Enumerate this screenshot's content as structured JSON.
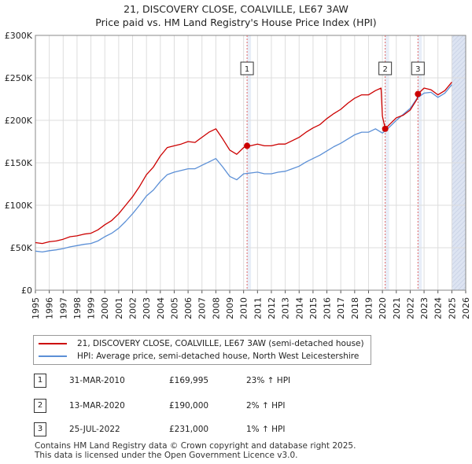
{
  "header": {
    "title": "21, DISCOVERY CLOSE, COALVILLE, LE67 3AW",
    "subtitle": "Price paid vs. HM Land Registry's House Price Index (HPI)"
  },
  "colors": {
    "property": "#cc0000",
    "hpi": "#5b8fd6",
    "future_shade": "#dde4f2",
    "sale_shade": "#e8eef8",
    "grid": "#dddddd",
    "marker_line": "#e06666"
  },
  "chart_data": {
    "type": "line",
    "title": "21, DISCOVERY CLOSE, COALVILLE, LE67 3AW",
    "xlim": [
      1995,
      2026
    ],
    "ylim": [
      0,
      300000
    ],
    "x_ticks": [
      1995,
      1996,
      1997,
      1998,
      1999,
      2000,
      2001,
      2002,
      2003,
      2004,
      2005,
      2006,
      2007,
      2008,
      2009,
      2010,
      2011,
      2012,
      2013,
      2014,
      2015,
      2016,
      2017,
      2018,
      2019,
      2020,
      2021,
      2022,
      2023,
      2024,
      2025,
      2026
    ],
    "y_ticks": [
      0,
      50000,
      100000,
      150000,
      200000,
      250000,
      300000
    ],
    "y_tick_labels": [
      "£0",
      "£50K",
      "£100K",
      "£150K",
      "£200K",
      "£250K",
      "£300K"
    ],
    "data_end": 2025.0,
    "series": [
      {
        "name": "21, DISCOVERY CLOSE, COALVILLE, LE67 3AW (semi-detached house)",
        "x": [
          1995.0,
          1995.5,
          1996.0,
          1996.5,
          1997.0,
          1997.5,
          1998.0,
          1998.5,
          1999.0,
          1999.5,
          2000.0,
          2000.5,
          2001.0,
          2001.5,
          2002.0,
          2002.5,
          2003.0,
          2003.5,
          2004.0,
          2004.5,
          2005.0,
          2005.5,
          2006.0,
          2006.5,
          2007.0,
          2007.5,
          2008.0,
          2008.5,
          2009.0,
          2009.5,
          2010.0,
          2010.25,
          2010.5,
          2011.0,
          2011.5,
          2012.0,
          2012.5,
          2013.0,
          2013.5,
          2014.0,
          2014.5,
          2015.0,
          2015.5,
          2016.0,
          2016.5,
          2017.0,
          2017.5,
          2018.0,
          2018.5,
          2019.0,
          2019.5,
          2019.9,
          2020.0,
          2020.2,
          2020.5,
          2021.0,
          2021.5,
          2022.0,
          2022.5,
          2022.56,
          2023.0,
          2023.5,
          2024.0,
          2024.5,
          2025.0
        ],
        "values": [
          56000,
          55000,
          57000,
          58000,
          60000,
          63000,
          64000,
          66000,
          67000,
          71000,
          77000,
          82000,
          90000,
          100000,
          110000,
          122000,
          136000,
          145000,
          158000,
          168000,
          170000,
          172000,
          175000,
          174000,
          180000,
          186000,
          190000,
          178000,
          165000,
          160000,
          168000,
          169995,
          170000,
          172000,
          170000,
          170000,
          172000,
          172000,
          176000,
          180000,
          186000,
          191000,
          195000,
          202000,
          208000,
          213000,
          220000,
          226000,
          230000,
          230000,
          235000,
          238000,
          205000,
          190000,
          195000,
          203000,
          206000,
          212000,
          225000,
          231000,
          238000,
          236000,
          230000,
          235000,
          245000
        ]
      },
      {
        "name": "HPI: Average price, semi-detached house, North West Leicestershire",
        "x": [
          1995.0,
          1995.5,
          1996.0,
          1996.5,
          1997.0,
          1997.5,
          1998.0,
          1998.5,
          1999.0,
          1999.5,
          2000.0,
          2000.5,
          2001.0,
          2001.5,
          2002.0,
          2002.5,
          2003.0,
          2003.5,
          2004.0,
          2004.5,
          2005.0,
          2005.5,
          2006.0,
          2006.5,
          2007.0,
          2007.5,
          2008.0,
          2008.5,
          2009.0,
          2009.5,
          2010.0,
          2010.5,
          2011.0,
          2011.5,
          2012.0,
          2012.5,
          2013.0,
          2013.5,
          2014.0,
          2014.5,
          2015.0,
          2015.5,
          2016.0,
          2016.5,
          2017.0,
          2017.5,
          2018.0,
          2018.5,
          2019.0,
          2019.5,
          2020.0,
          2020.5,
          2021.0,
          2021.5,
          2022.0,
          2022.5,
          2023.0,
          2023.5,
          2024.0,
          2024.5,
          2025.0
        ],
        "values": [
          46000,
          45000,
          46500,
          47500,
          49000,
          51000,
          52500,
          54000,
          55000,
          58000,
          63000,
          67000,
          73000,
          81000,
          90000,
          100000,
          111000,
          118000,
          128000,
          136000,
          139000,
          141000,
          143000,
          143000,
          147000,
          151000,
          155000,
          145000,
          134000,
          130000,
          137000,
          138000,
          139000,
          137000,
          137000,
          139000,
          140000,
          143000,
          146000,
          151000,
          155000,
          159000,
          164000,
          169000,
          173000,
          178000,
          183000,
          186000,
          186000,
          190000,
          185000,
          192000,
          200000,
          207000,
          214000,
          226000,
          232000,
          233000,
          227000,
          232000,
          242000
        ]
      }
    ],
    "sales": [
      {
        "label": "1",
        "x": 2010.25,
        "value": 169995
      },
      {
        "label": "2",
        "x": 2020.2,
        "value": 190000
      },
      {
        "label": "3",
        "x": 2022.56,
        "value": 231000
      }
    ]
  },
  "legend": {
    "property_label": "21, DISCOVERY CLOSE, COALVILLE, LE67 3AW (semi-detached house)",
    "hpi_label": "HPI: Average price, semi-detached house, North West Leicestershire"
  },
  "transactions": [
    {
      "num": "1",
      "date": "31-MAR-2010",
      "price": "£169,995",
      "hpi": "23% ↑ HPI"
    },
    {
      "num": "2",
      "date": "13-MAR-2020",
      "price": "£190,000",
      "hpi": "2% ↑ HPI"
    },
    {
      "num": "3",
      "date": "25-JUL-2022",
      "price": "£231,000",
      "hpi": "1% ↑ HPI"
    }
  ],
  "footer": {
    "line1": "Contains HM Land Registry data © Crown copyright and database right 2025.",
    "line2": "This data is licensed under the Open Government Licence v3.0."
  }
}
